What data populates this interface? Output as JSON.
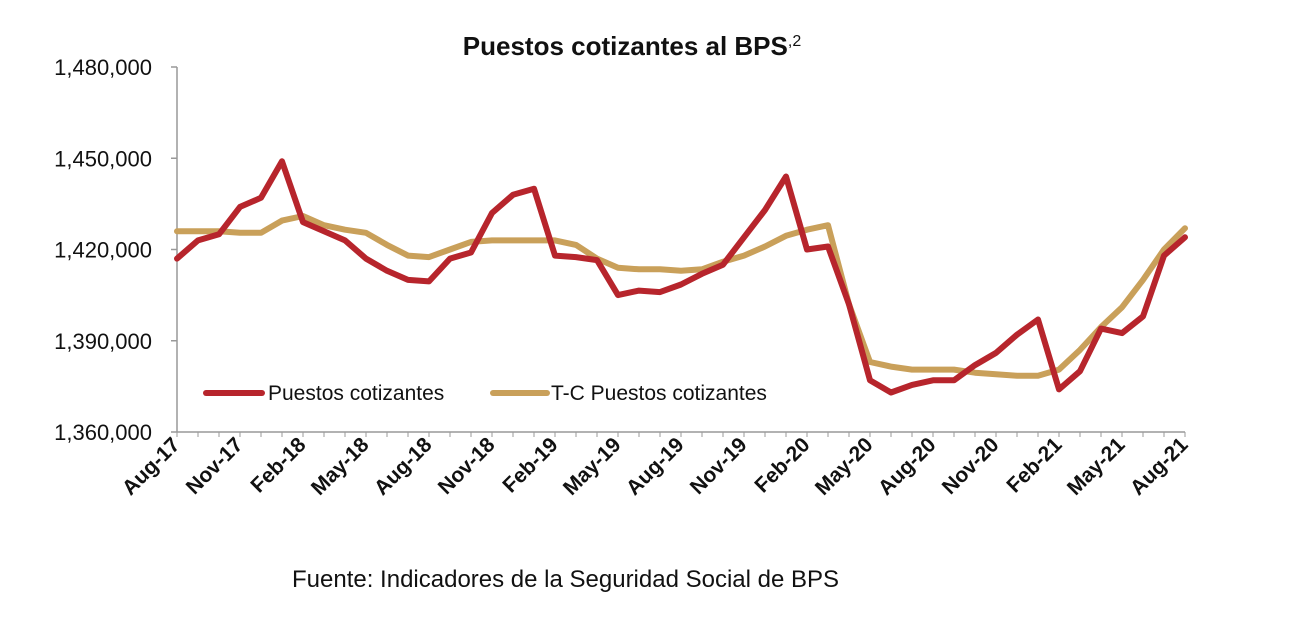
{
  "chart_data": {
    "type": "line",
    "title": "Puestos cotizantes al BPS",
    "title_superscript": ",2",
    "xlabel": "",
    "ylabel": "",
    "ylim": [
      1360000,
      1480000
    ],
    "yticks": [
      1360000,
      1390000,
      1420000,
      1450000,
      1480000
    ],
    "ytick_labels": [
      "1,360,000",
      "1,390,000",
      "1,420,000",
      "1,450,000",
      "1,480,000"
    ],
    "x": [
      "Aug-17",
      "Sep-17",
      "Oct-17",
      "Nov-17",
      "Dec-17",
      "Jan-18",
      "Feb-18",
      "Mar-18",
      "Apr-18",
      "May-18",
      "Jun-18",
      "Jul-18",
      "Aug-18",
      "Sep-18",
      "Oct-18",
      "Nov-18",
      "Dec-18",
      "Jan-19",
      "Feb-19",
      "Mar-19",
      "Apr-19",
      "May-19",
      "Jun-19",
      "Jul-19",
      "Aug-19",
      "Sep-19",
      "Oct-19",
      "Nov-19",
      "Dec-19",
      "Jan-20",
      "Feb-20",
      "Mar-20",
      "Apr-20",
      "May-20",
      "Jun-20",
      "Jul-20",
      "Aug-20",
      "Sep-20",
      "Oct-20",
      "Nov-20",
      "Dec-20",
      "Jan-21",
      "Feb-21",
      "Mar-21",
      "Apr-21",
      "May-21",
      "Jun-21",
      "Jul-21",
      "Aug-21"
    ],
    "xtick_labels": [
      "Aug-17",
      "Nov-17",
      "Feb-18",
      "May-18",
      "Aug-18",
      "Nov-18",
      "Feb-19",
      "May-19",
      "Aug-19",
      "Nov-19",
      "Feb-20",
      "May-20",
      "Aug-20",
      "Nov-20",
      "Feb-21",
      "May-21",
      "Aug-21"
    ],
    "series": [
      {
        "name": "Puestos cotizantes",
        "color": "#b7252c",
        "values": [
          1417000,
          1423000,
          1425000,
          1434000,
          1437000,
          1449000,
          1429000,
          1426000,
          1423000,
          1417000,
          1413000,
          1410000,
          1409500,
          1417000,
          1419000,
          1432000,
          1438000,
          1440000,
          1418000,
          1417500,
          1416500,
          1405000,
          1406500,
          1406000,
          1408500,
          1412000,
          1415000,
          1424000,
          1433000,
          1444000,
          1420000,
          1421000,
          1402000,
          1377000,
          1373000,
          1375500,
          1377000,
          1377000,
          1382000,
          1386000,
          1392000,
          1397000,
          1374000,
          1380000,
          1394000,
          1392500,
          1398000,
          1418000,
          1424000
        ]
      },
      {
        "name": "T-C Puestos cotizantes",
        "color": "#c9a05a",
        "values": [
          1426000,
          1426000,
          1426000,
          1425500,
          1425500,
          1429500,
          1431000,
          1428000,
          1426500,
          1425500,
          1421500,
          1418000,
          1417500,
          1420000,
          1422500,
          1423000,
          1423000,
          1423000,
          1423000,
          1421500,
          1417000,
          1414000,
          1413500,
          1413500,
          1413000,
          1413500,
          1416000,
          1418000,
          1421000,
          1424500,
          1426500,
          1428000,
          1402000,
          1383000,
          1381500,
          1380500,
          1380500,
          1380500,
          1379500,
          1379000,
          1378500,
          1378500,
          1380500,
          1387000,
          1394500,
          1401000,
          1410000,
          1420000,
          1427000
        ]
      }
    ],
    "legend_position": "bottom-left",
    "grid": false
  },
  "source_text": "Fuente: Indicadores de la Seguridad Social de BPS"
}
